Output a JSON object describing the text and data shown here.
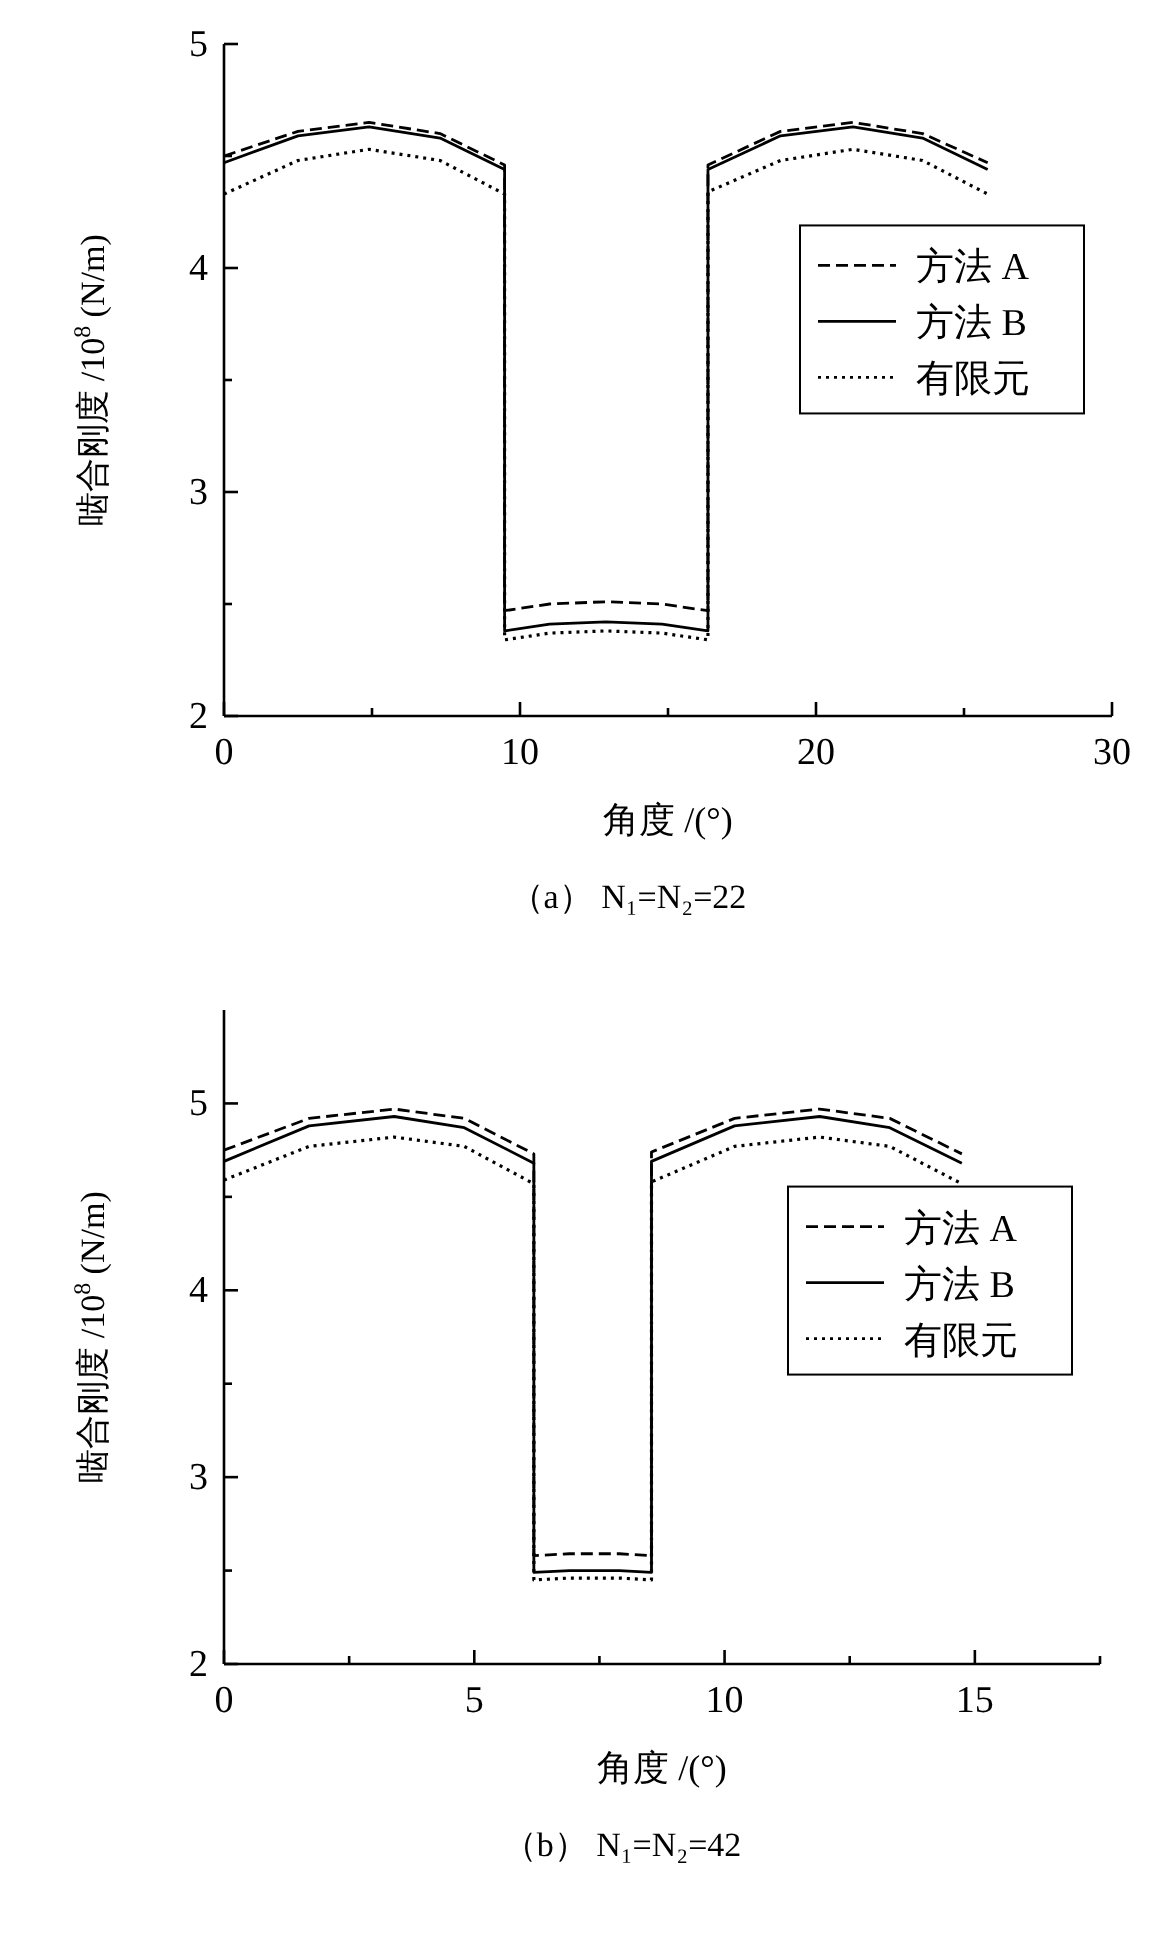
{
  "chart_data": [
    {
      "type": "line",
      "title": "（a） N₁=N₂=22",
      "xlabel": "角度 /(°)",
      "ylabel": "啮合刚度 /10$^{8}$ (N/m)",
      "xlim": [
        0,
        30
      ],
      "xticks": [
        0,
        {
          "value": 5,
          "label": null
        },
        10,
        {
          "value": 15,
          "label": null
        },
        20,
        {
          "value": 25,
          "label": null
        },
        30
      ],
      "ylim": [
        2,
        5
      ],
      "yticks": [
        2,
        {
          "value": 2.5,
          "label": null
        },
        3,
        {
          "value": 3.5,
          "label": null
        },
        4,
        {
          "value": 4.5,
          "label": null
        },
        5
      ],
      "legend": "right",
      "grid": false,
      "marker": "none",
      "x": [
        0,
        2.5,
        4.9,
        7.3,
        9.48,
        9.48,
        11,
        12.9,
        14.8,
        16.35,
        16.35,
        18.8,
        21.25,
        23.6,
        25.8
      ],
      "series": [
        {
          "name": "方法 A",
          "color": "#000000",
          "line_style": "dashed",
          "values": [
            4.5,
            4.61,
            4.65,
            4.6,
            4.46,
            2.47,
            2.5,
            2.51,
            2.5,
            2.47,
            4.46,
            4.61,
            4.65,
            4.6,
            4.47
          ]
        },
        {
          "name": "方法 B",
          "color": "#000000",
          "line_style": "solid",
          "values": [
            4.47,
            4.59,
            4.63,
            4.58,
            4.44,
            2.38,
            2.41,
            2.42,
            2.41,
            2.38,
            4.44,
            4.59,
            4.63,
            4.58,
            4.44
          ]
        },
        {
          "name": "有限元",
          "color": "#000000",
          "line_style": "dotted",
          "values": [
            4.33,
            4.48,
            4.53,
            4.48,
            4.33,
            2.34,
            2.37,
            2.38,
            2.37,
            2.34,
            4.34,
            4.48,
            4.53,
            4.48,
            4.33
          ]
        }
      ]
    },
    {
      "type": "line",
      "title": "（b） N₁=N₂=42",
      "xlabel": "角度 /(°)",
      "ylabel": "啮合刚度 /10$^{8}$ (N/m)",
      "xlim": [
        0,
        17.5
      ],
      "xticks": [
        0,
        {
          "value": 2.5,
          "label": null
        },
        5,
        {
          "value": 7.5,
          "label": null
        },
        10,
        {
          "value": 12.5,
          "label": null
        },
        15,
        {
          "value": 17.5,
          "label": null
        }
      ],
      "ylim": [
        2,
        5.5
      ],
      "yticks": [
        2,
        {
          "value": 2.5,
          "label": null
        },
        3,
        {
          "value": 3.5,
          "label": null
        },
        4,
        {
          "value": 4.5,
          "label": null
        },
        5
      ],
      "legend": "right",
      "grid": false,
      "marker": "none",
      "x": [
        0,
        1.7,
        3.4,
        4.8,
        6.19,
        6.19,
        6.9,
        7.4,
        7.9,
        8.54,
        8.54,
        10.2,
        11.9,
        13.3,
        14.74
      ],
      "series": [
        {
          "name": "方法 A",
          "color": "#000000",
          "line_style": "dashed",
          "values": [
            4.75,
            4.92,
            4.97,
            4.92,
            4.73,
            2.58,
            2.59,
            2.59,
            2.59,
            2.58,
            4.74,
            4.92,
            4.97,
            4.92,
            4.73
          ]
        },
        {
          "name": "方法 B",
          "color": "#000000",
          "line_style": "solid",
          "values": [
            4.69,
            4.88,
            4.93,
            4.87,
            4.68,
            2.49,
            2.5,
            2.5,
            2.5,
            2.49,
            4.69,
            4.88,
            4.93,
            4.87,
            4.68
          ]
        },
        {
          "name": "有限元",
          "color": "#000000",
          "line_style": "dotted",
          "values": [
            4.59,
            4.77,
            4.82,
            4.77,
            4.57,
            2.45,
            2.46,
            2.46,
            2.46,
            2.45,
            4.58,
            4.77,
            4.82,
            4.77,
            4.57
          ]
        }
      ]
    }
  ]
}
